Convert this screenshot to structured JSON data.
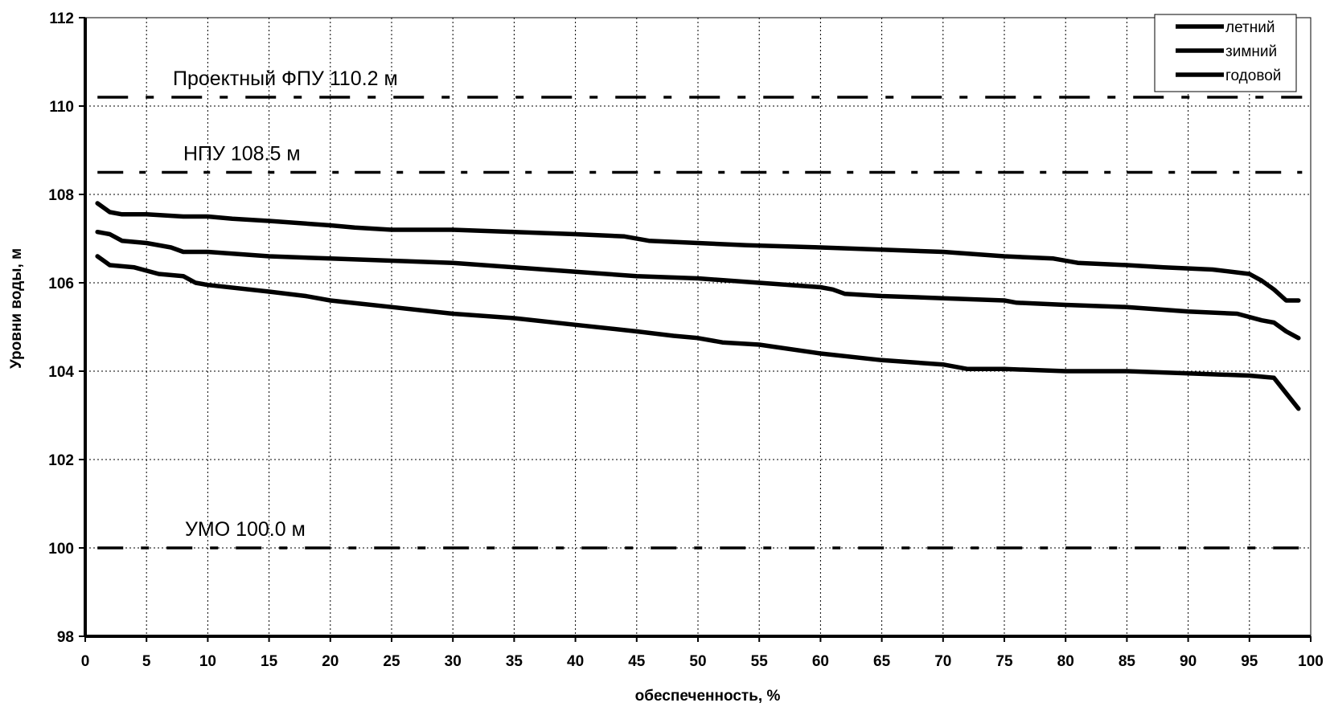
{
  "chart_data": {
    "type": "line",
    "title": "",
    "xlabel": "обеспеченность, %",
    "ylabel": "Уровни воды, м",
    "xlim": [
      0,
      100
    ],
    "ylim": [
      98,
      112
    ],
    "x_ticks": [
      0,
      5,
      10,
      15,
      20,
      25,
      30,
      35,
      40,
      45,
      50,
      55,
      60,
      65,
      70,
      75,
      80,
      85,
      90,
      95,
      100
    ],
    "y_ticks": [
      98,
      100,
      102,
      104,
      106,
      108,
      110,
      112
    ],
    "grid": true,
    "legend_position": "top-right",
    "series": [
      {
        "name": "летний",
        "x": [
          1,
          2,
          3,
          5,
          8,
          10,
          12,
          15,
          20,
          22,
          25,
          30,
          35,
          40,
          44,
          46,
          50,
          54,
          60,
          65,
          70,
          75,
          79,
          81,
          85,
          88,
          92,
          95,
          96,
          97,
          98,
          99
        ],
        "y": [
          107.8,
          107.6,
          107.55,
          107.55,
          107.5,
          107.5,
          107.45,
          107.4,
          107.3,
          107.25,
          107.2,
          107.2,
          107.15,
          107.1,
          107.05,
          106.95,
          106.9,
          106.85,
          106.8,
          106.75,
          106.7,
          106.6,
          106.55,
          106.45,
          106.4,
          106.35,
          106.3,
          106.2,
          106.05,
          105.85,
          105.6,
          105.6
        ]
      },
      {
        "name": "зимний",
        "x": [
          1,
          2,
          3,
          5,
          7,
          8,
          10,
          15,
          20,
          25,
          30,
          35,
          40,
          45,
          50,
          55,
          60,
          61,
          62,
          65,
          70,
          75,
          76,
          80,
          85,
          90,
          94,
          96,
          97,
          98,
          99
        ],
        "y": [
          107.15,
          107.1,
          106.95,
          106.9,
          106.8,
          106.7,
          106.7,
          106.6,
          106.55,
          106.5,
          106.45,
          106.35,
          106.25,
          106.15,
          106.1,
          106.0,
          105.9,
          105.85,
          105.75,
          105.7,
          105.65,
          105.6,
          105.55,
          105.5,
          105.45,
          105.35,
          105.3,
          105.15,
          105.1,
          104.9,
          104.75
        ]
      },
      {
        "name": "годовой",
        "x": [
          1,
          2,
          4,
          6,
          8,
          9,
          10,
          15,
          18,
          20,
          25,
          30,
          35,
          40,
          45,
          48,
          50,
          52,
          55,
          60,
          65,
          70,
          72,
          75,
          80,
          85,
          90,
          95,
          97,
          98,
          99
        ],
        "y": [
          106.6,
          106.4,
          106.35,
          106.2,
          106.15,
          106.0,
          105.95,
          105.8,
          105.7,
          105.6,
          105.45,
          105.3,
          105.2,
          105.05,
          104.9,
          104.8,
          104.75,
          104.65,
          104.6,
          104.4,
          104.25,
          104.15,
          104.05,
          104.05,
          104.0,
          104.0,
          103.95,
          103.9,
          103.85,
          103.5,
          103.15
        ]
      }
    ],
    "reference_lines": [
      {
        "label": "Проектный ФПУ 110.2 м",
        "y": 110.2
      },
      {
        "label": "НПУ 108.5 м",
        "y": 108.5
      },
      {
        "label": "УМО 100.0 м",
        "y": 100.0
      }
    ]
  }
}
